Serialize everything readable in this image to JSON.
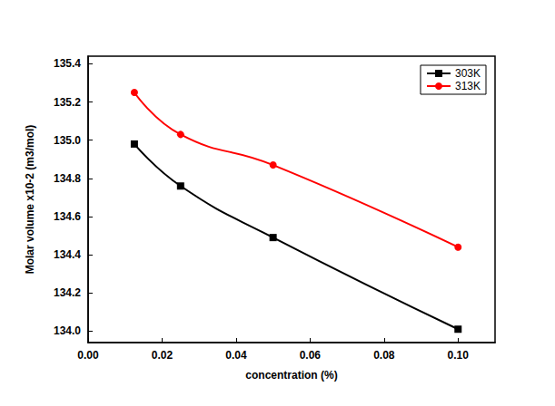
{
  "chart_data": {
    "type": "line",
    "x_label": "concentration (%)",
    "y_label": "Molar volume x10-2 (m3/mol)",
    "x": [
      0.0125,
      0.025,
      0.05,
      0.1
    ],
    "series": [
      {
        "name": "303K",
        "color": "#000000",
        "marker": "square",
        "line_style": "solid",
        "values": [
          134.98,
          134.76,
          134.49,
          134.01
        ]
      },
      {
        "name": "313K",
        "color": "#ff0000",
        "marker": "circle",
        "line_style": "solid",
        "values": [
          135.25,
          135.03,
          134.87,
          134.44
        ]
      }
    ],
    "xlim": [
      0,
      0.11
    ],
    "xticks": [
      {
        "value": 0,
        "label": "0.00"
      },
      {
        "value": 0.02,
        "label": "0.02"
      },
      {
        "value": 0.04,
        "label": "0.04"
      },
      {
        "value": 0.06,
        "label": "0.06"
      },
      {
        "value": 0.08,
        "label": "0.08"
      },
      {
        "value": 0.1,
        "label": "0.10"
      }
    ],
    "ylim": [
      133.94,
      135.44
    ],
    "yticks": [
      {
        "value": 134,
        "label": "134.0"
      },
      134.2,
      134.4,
      134.6,
      134.8,
      {
        "value": 135,
        "label": "135.0"
      },
      135.2,
      135.4
    ],
    "grid": false,
    "legend": "upper right"
  }
}
